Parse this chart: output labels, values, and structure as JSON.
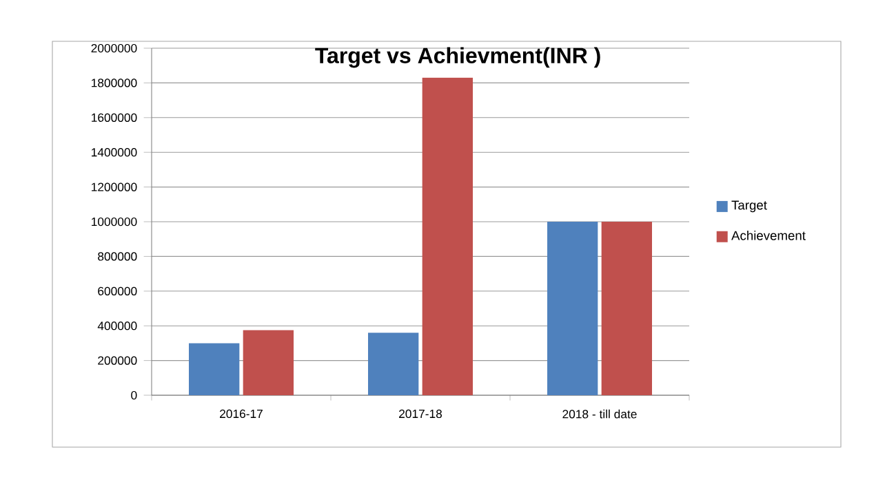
{
  "chart_data": {
    "type": "bar",
    "title": "Target vs Achievment(INR )",
    "categories": [
      "2016-17",
      "2017-18",
      "2018 - till date"
    ],
    "series": [
      {
        "name": "Target",
        "color": "#4f81bd",
        "values": [
          300000,
          360000,
          1000000
        ]
      },
      {
        "name": "Achievement",
        "color": "#c0504d",
        "values": [
          375000,
          1830000,
          1000000
        ]
      }
    ],
    "ylim": [
      0,
      2000000
    ],
    "yticks": [
      0,
      200000,
      400000,
      600000,
      800000,
      1000000,
      1200000,
      1400000,
      1600000,
      1800000,
      2000000
    ],
    "grid": "y",
    "legend": "right"
  }
}
